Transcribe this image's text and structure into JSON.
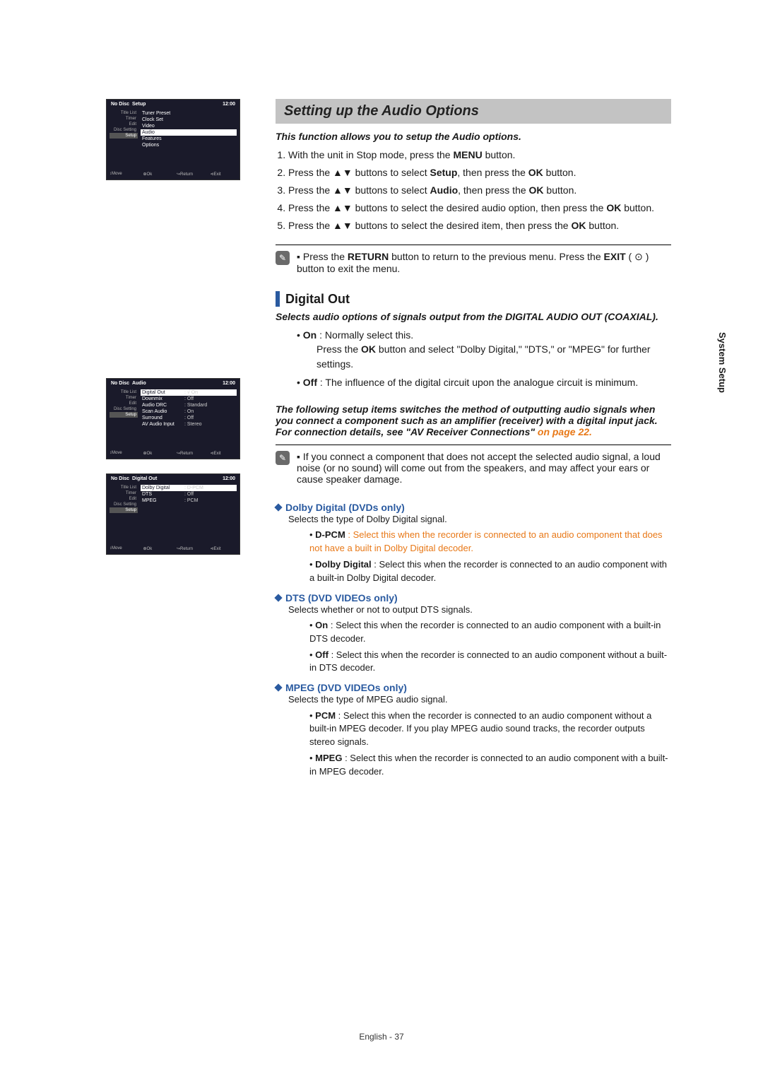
{
  "section_bar": "Setting up the Audio Options",
  "intro": "This function allows you to setup the Audio options.",
  "steps": [
    {
      "n": "1.",
      "pre": "With the unit in Stop mode, press the ",
      "b": "MENU",
      "post": " button."
    },
    {
      "n": "2.",
      "pre": "Press the ▲▼ buttons to select ",
      "b": "Setup",
      "post": ", then press the ",
      "b2": "OK",
      "post2": " button."
    },
    {
      "n": "3.",
      "pre": "Press the ▲▼ buttons to select ",
      "b": "Audio",
      "post": ", then press the ",
      "b2": "OK",
      "post2": " button."
    },
    {
      "n": "4.",
      "pre": "Press the ▲▼ buttons to select the desired audio option, then press the ",
      "b": "OK",
      "post": " button."
    },
    {
      "n": "5.",
      "pre": "Press the ▲▼ buttons to select the desired item, then press the ",
      "b": "OK",
      "post": " button."
    }
  ],
  "note1_a": "Press the ",
  "note1_b1": "RETURN",
  "note1_c": " button to return to the previous menu.\nPress the ",
  "note1_b2": "EXIT",
  "note1_d": " ( ⊙ ) button to exit the menu.",
  "sub_heading": "Digital Out",
  "sub_intro": "Selects audio options of signals output from the DIGITAL AUDIO OUT (COAXIAL).",
  "opt_on_b": "On",
  "opt_on_t": " : Normally select this.",
  "opt_on_detail_a": "Press the ",
  "opt_on_detail_b": "OK",
  "opt_on_detail_c": " button and select \"Dolby Digital,\" \"DTS,\" or \"MPEG\" for further settings.",
  "opt_off_b": "Off",
  "opt_off_t": " : The influence of the digital circuit upon the analogue circuit is minimum.",
  "para2_a": "The following setup items switches the method of outputting audio signals when you connect a component such as an amplifier (receiver) with a digital input jack.",
  "para2_b": "For connection details, see \"AV Receiver Connections\" ",
  "para2_c": "on page 22.",
  "note2": "If you connect a component that does not accept the selected audio signal, a loud noise (or no sound) will come out from the speakers, and may affect your ears or cause speaker damage.",
  "d1_h": "Dolby Digital (DVDs only)",
  "d1_s": "Selects the type of Dolby Digital signal.",
  "d1_i1_b": "D-PCM",
  "d1_i1_t": " : Select this when the recorder is connected to an audio component that does not have a built in Dolby Digital decoder.",
  "d1_i2_b": "Dolby Digital",
  "d1_i2_t": " : Select this when the recorder is connected to an audio component with a built-in Dolby Digital decoder.",
  "d2_h": "DTS (DVD VIDEOs only)",
  "d2_s": "Selects whether or not to output DTS signals.",
  "d2_i1_b": "On",
  "d2_i1_t": " : Select this when the recorder is connected to an audio component with a built-in DTS decoder.",
  "d2_i2_b": "Off",
  "d2_i2_t": " : Select this when the recorder is connected to an audio component without a built-in DTS decoder.",
  "d3_h": "MPEG (DVD VIDEOs only)",
  "d3_s": "Selects the type of MPEG audio signal.",
  "d3_i1_b": "PCM",
  "d3_i1_t": " : Select this when the recorder is connected to an audio component without a built-in MPEG decoder. If you play MPEG audio sound tracks, the recorder outputs stereo signals.",
  "d3_i2_b": "MPEG",
  "d3_i2_t": " : Select this when the recorder is connected to an audio component with a built-in MPEG decoder.",
  "side_tab": "System Setup",
  "footer": "English - 37",
  "osd1": {
    "header_l": "No Disc",
    "header_m": "Setup",
    "header_r": "12:00",
    "sidebar": [
      "Title List",
      "Timer",
      "Edit",
      "Disc Setting",
      "Setup"
    ],
    "items": [
      [
        "Tuner Preset",
        ""
      ],
      [
        "Clock Set",
        ""
      ],
      [
        "Video",
        ""
      ],
      [
        "Audio",
        ""
      ],
      [
        "Features",
        ""
      ],
      [
        "Options",
        ""
      ]
    ],
    "hl": 3,
    "footer": [
      "↕Move",
      "⊕Ok",
      "↪Return",
      "⊲Exit"
    ]
  },
  "osd2": {
    "header_l": "No Disc",
    "header_m": "Audio",
    "header_r": "12:00",
    "sidebar": [
      "Title List",
      "Timer",
      "Edit",
      "Disc Setting",
      "Setup"
    ],
    "items": [
      [
        "Digital Out",
        ": √ On"
      ],
      [
        "Downmix",
        ":   Off"
      ],
      [
        "Audio DRC",
        ": Standard"
      ],
      [
        "Scan Audio",
        ": On"
      ],
      [
        "Surround",
        ": Off"
      ],
      [
        "AV Audio Input",
        ": Stereo"
      ]
    ],
    "hl": 0,
    "footer": [
      "↕Move",
      "⊕Ok",
      "↪Return",
      "⊲Exit"
    ]
  },
  "osd3": {
    "header_l": "No Disc",
    "header_m": "Digital Out",
    "header_r": "12:00",
    "sidebar": [
      "Title List",
      "Timer",
      "Edit",
      "Disc Setting",
      "Setup"
    ],
    "items": [
      [
        "Dolby Digital",
        ": D-PCM"
      ],
      [
        "DTS",
        ": Off"
      ],
      [
        "MPEG",
        ": PCM"
      ]
    ],
    "hl": 0,
    "footer": [
      "↕Move",
      "⊕Ok",
      "↪Return",
      "⊲Exit"
    ]
  }
}
